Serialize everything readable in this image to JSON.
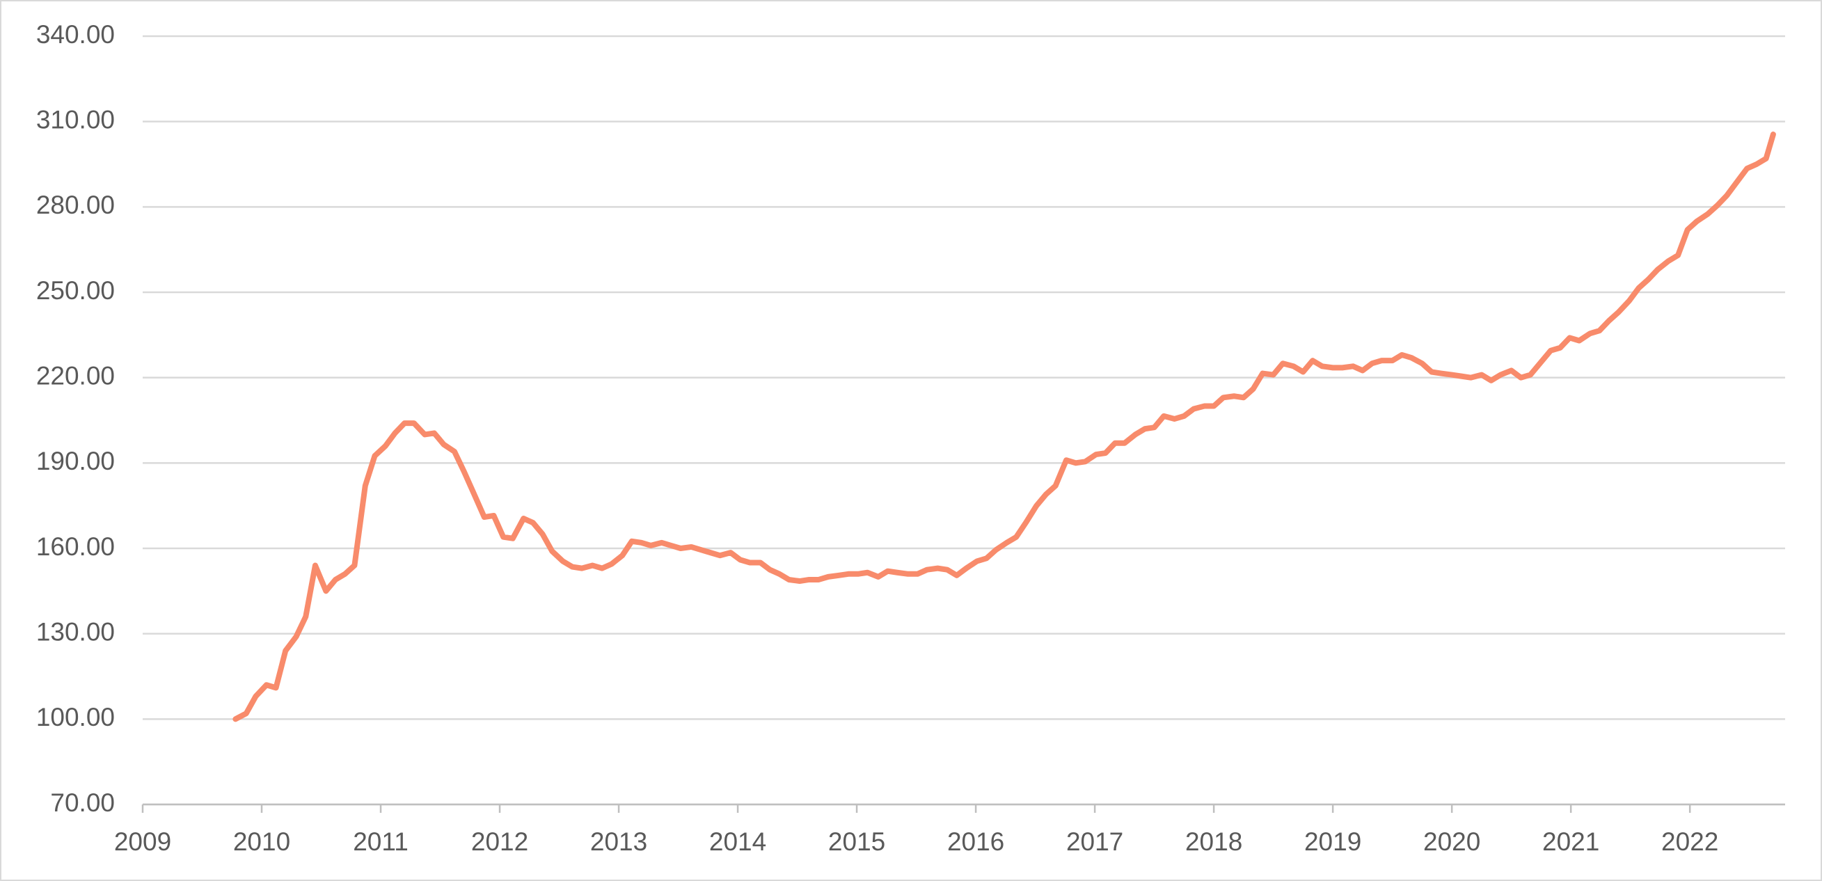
{
  "chart_data": {
    "type": "line",
    "color": "#f88b6b",
    "grid": true,
    "xlim": [
      2009,
      2022.8
    ],
    "xticks": [
      2009,
      2010,
      2011,
      2012,
      2013,
      2014,
      2015,
      2016,
      2017,
      2018,
      2019,
      2020,
      2021,
      2022
    ],
    "ylim": [
      70,
      340
    ],
    "yticks": [
      {
        "value": 70,
        "label": "70.00"
      },
      {
        "value": 100,
        "label": "100.00"
      },
      {
        "value": 130,
        "label": "130.00"
      },
      {
        "value": 160,
        "label": "160.00"
      },
      {
        "value": 190,
        "label": "190.00"
      },
      {
        "value": 220,
        "label": "220.00"
      },
      {
        "value": 250,
        "label": "250.00"
      },
      {
        "value": 280,
        "label": "280.00"
      },
      {
        "value": 310,
        "label": "310.00"
      },
      {
        "value": 340,
        "label": "340.00"
      }
    ],
    "x": [
      2009.78,
      2009.87,
      2009.95,
      2010.04,
      2010.12,
      2010.2,
      2010.29,
      2010.37,
      2010.45,
      2010.54,
      2010.62,
      2010.7,
      2010.78,
      2010.87,
      2010.95,
      2011.04,
      2011.12,
      2011.2,
      2011.28,
      2011.37,
      2011.45,
      2011.53,
      2011.62,
      2011.7,
      2011.78,
      2011.87,
      2011.95,
      2012.03,
      2012.11,
      2012.2,
      2012.28,
      2012.36,
      2012.44,
      2012.53,
      2012.61,
      2012.69,
      2012.78,
      2012.86,
      2012.94,
      2013.03,
      2013.11,
      2013.19,
      2013.27,
      2013.36,
      2013.44,
      2013.52,
      2013.61,
      2013.69,
      2013.77,
      2013.85,
      2013.94,
      2014.02,
      2014.1,
      2014.19,
      2014.27,
      2014.35,
      2014.43,
      2014.52,
      2014.6,
      2014.68,
      2014.76,
      2014.85,
      2014.93,
      2015.01,
      2015.09,
      2015.18,
      2015.26,
      2015.34,
      2015.43,
      2015.51,
      2015.59,
      2015.68,
      2015.76,
      2015.84,
      2015.92,
      2016.01,
      2016.09,
      2016.17,
      2016.26,
      2016.34,
      2016.42,
      2016.51,
      2016.59,
      2016.67,
      2016.76,
      2016.84,
      2016.92,
      2017.01,
      2017.09,
      2017.17,
      2017.25,
      2017.34,
      2017.42,
      2017.5,
      2017.58,
      2017.67,
      2017.75,
      2017.83,
      2017.92,
      2018.0,
      2018.08,
      2018.17,
      2018.25,
      2018.33,
      2018.41,
      2018.5,
      2018.58,
      2018.67,
      2018.75,
      2018.83,
      2018.91,
      2019.0,
      2019.08,
      2019.17,
      2019.25,
      2019.33,
      2019.41,
      2019.5,
      2019.58,
      2019.66,
      2019.75,
      2019.83,
      2019.91,
      2020.0,
      2020.08,
      2020.16,
      2020.25,
      2020.33,
      2020.41,
      2020.5,
      2020.58,
      2020.66,
      2020.74,
      2020.83,
      2020.91,
      2020.99,
      2021.07,
      2021.16,
      2021.24,
      2021.32,
      2021.4,
      2021.49,
      2021.57,
      2021.65,
      2021.73,
      2021.82,
      2021.9,
      2021.98,
      2022.06,
      2022.15,
      2022.23,
      2022.31,
      2022.39,
      2022.48,
      2022.56,
      2022.64,
      2022.7
    ],
    "values": [
      100,
      102,
      108,
      112,
      111,
      124,
      129,
      136,
      154,
      145,
      149,
      151,
      154,
      182,
      192.5,
      196,
      200.5,
      204,
      204,
      200,
      200.5,
      196.5,
      194,
      187,
      179.5,
      171,
      171.5,
      164,
      163.5,
      170.5,
      169,
      165,
      159,
      155.5,
      153.5,
      153,
      154,
      153,
      154.5,
      157.5,
      162.5,
      162,
      161,
      162,
      161,
      160,
      160.5,
      159.5,
      158.5,
      157.5,
      158.5,
      156,
      155,
      155,
      152.5,
      151,
      149,
      148.5,
      149,
      149,
      150,
      150.5,
      151,
      151,
      151.5,
      150,
      152,
      151.5,
      151,
      151,
      152.5,
      153,
      152.5,
      150.5,
      153,
      155.5,
      156.5,
      159.5,
      162,
      164,
      169,
      175,
      179,
      182,
      191,
      190,
      190.5,
      193,
      193.5,
      197,
      197,
      200,
      202,
      202.5,
      206.5,
      205.5,
      206.5,
      209,
      210,
      210,
      213,
      213.5,
      213,
      216,
      221.5,
      221,
      225,
      224,
      222,
      226,
      224,
      223.5,
      223.5,
      224,
      222.5,
      225,
      226,
      226,
      228,
      227,
      225,
      222,
      221.5,
      221,
      220.5,
      220,
      221,
      219,
      221,
      222.5,
      220,
      221,
      225,
      229.5,
      230.5,
      234,
      233,
      235.5,
      236.5,
      240,
      243,
      247,
      251.5,
      254.5,
      258,
      261,
      263,
      272,
      275,
      277.5,
      280.5,
      284,
      288.5,
      293.5,
      295,
      297,
      305.5
    ]
  }
}
